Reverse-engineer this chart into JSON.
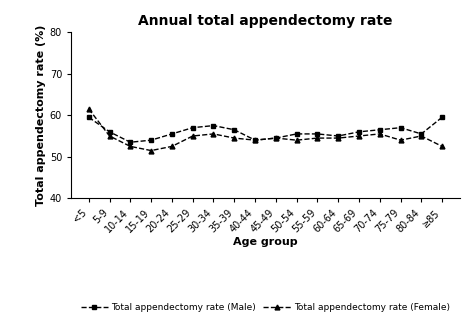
{
  "title": "Annual total appendectomy rate",
  "xlabel": "Age group",
  "ylabel": "Total appendectomy rate (%)",
  "age_groups": [
    "<5",
    "5-9",
    "10-14",
    "15-19",
    "20-24",
    "25-29",
    "30-34",
    "35-39",
    "40-44",
    "45-49",
    "50-54",
    "55-59",
    "60-64",
    "65-69",
    "70-74",
    "75-79",
    "80-84",
    "≥85"
  ],
  "male": [
    59.5,
    56.0,
    53.5,
    54.0,
    55.5,
    57.0,
    57.5,
    56.5,
    54.0,
    54.5,
    55.5,
    55.5,
    55.0,
    56.0,
    56.5,
    57.0,
    55.5,
    59.5
  ],
  "female": [
    61.5,
    55.0,
    52.5,
    51.5,
    52.5,
    55.0,
    55.5,
    54.5,
    54.0,
    54.5,
    54.0,
    54.5,
    54.5,
    55.0,
    55.5,
    54.0,
    55.0,
    52.5
  ],
  "ylim": [
    40,
    80
  ],
  "yticks": [
    40,
    50,
    60,
    70,
    80
  ],
  "line_color": "#000000",
  "legend_male": "Total appendectomy rate (Male)",
  "legend_female": "Total appendectomy rate (Female)",
  "bg_color": "#ffffff",
  "title_fontsize": 10,
  "label_fontsize": 8,
  "tick_fontsize": 7,
  "legend_fontsize": 6.5
}
